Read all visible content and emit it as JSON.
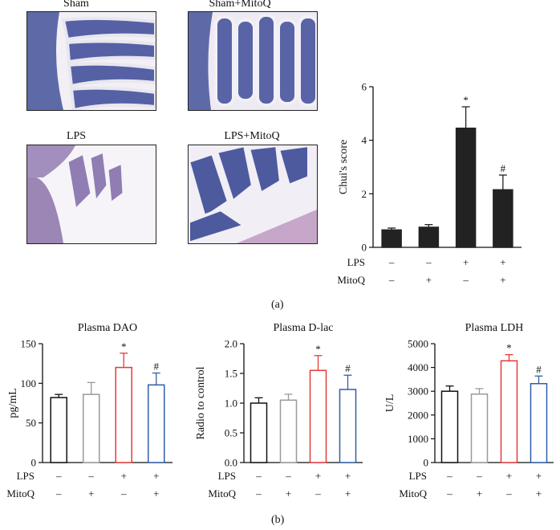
{
  "panel_a": {
    "letter": "(a)",
    "images": [
      {
        "label": "Sham"
      },
      {
        "label": "Sham+MitoQ"
      },
      {
        "label": "LPS"
      },
      {
        "label": "LPS+MitoQ"
      }
    ]
  },
  "panel_b": {
    "letter": "(b)"
  },
  "chart_data": [
    {
      "type": "bar",
      "title": "",
      "ylabel": "Chui's score",
      "ylim": [
        0,
        6
      ],
      "yticks": [
        0,
        2,
        4,
        6
      ],
      "values": [
        0.65,
        0.75,
        4.45,
        2.15
      ],
      "errors": [
        0.07,
        0.1,
        0.8,
        0.55
      ],
      "colors": [
        "#222222",
        "#222222",
        "#222222",
        "#222222"
      ],
      "filled": true,
      "annotations": [
        "",
        "",
        "*",
        "#"
      ],
      "conditions": [
        {
          "name": "LPS",
          "marks": [
            "–",
            "–",
            "+",
            "+"
          ]
        },
        {
          "name": "MitoQ",
          "marks": [
            "–",
            "+",
            "–",
            "+"
          ]
        }
      ]
    },
    {
      "type": "bar",
      "title": "Plasma DAO",
      "ylabel": "pg/mL",
      "ylim": [
        0,
        150
      ],
      "yticks": [
        0,
        50,
        100,
        150
      ],
      "values": [
        82,
        86,
        120,
        98
      ],
      "errors": [
        4,
        15,
        18,
        15
      ],
      "colors": [
        "#111111",
        "#9a9a9a",
        "#e23b3b",
        "#2f5fa8"
      ],
      "filled": false,
      "annotations": [
        "",
        "",
        "*",
        "#"
      ],
      "conditions": [
        {
          "name": "LPS",
          "marks": [
            "–",
            "–",
            "+",
            "+"
          ]
        },
        {
          "name": "MitoQ",
          "marks": [
            "–",
            "+",
            "–",
            "+"
          ]
        }
      ]
    },
    {
      "type": "bar",
      "title": "Plasma D-lac",
      "ylabel": "Radio to control",
      "ylim": [
        0,
        2.0
      ],
      "yticks": [
        "0.0",
        "0.5",
        "1.0",
        "1.5",
        "2.0"
      ],
      "values": [
        1.0,
        1.05,
        1.55,
        1.23
      ],
      "errors": [
        0.09,
        0.1,
        0.25,
        0.24
      ],
      "colors": [
        "#111111",
        "#9a9a9a",
        "#e23b3b",
        "#2f5fa8"
      ],
      "filled": false,
      "annotations": [
        "",
        "",
        "*",
        "#"
      ],
      "conditions": [
        {
          "name": "LPS",
          "marks": [
            "–",
            "–",
            "+",
            "+"
          ]
        },
        {
          "name": "MitoQ",
          "marks": [
            "–",
            "+",
            "–",
            "+"
          ]
        }
      ]
    },
    {
      "type": "bar",
      "title": "Plasma LDH",
      "ylabel": "U/L",
      "ylim": [
        0,
        5000
      ],
      "yticks": [
        0,
        1000,
        2000,
        3000,
        4000,
        5000
      ],
      "values": [
        3000,
        2880,
        4280,
        3320
      ],
      "errors": [
        220,
        230,
        260,
        320
      ],
      "colors": [
        "#111111",
        "#9a9a9a",
        "#e23b3b",
        "#2f5fa8"
      ],
      "filled": false,
      "annotations": [
        "",
        "",
        "*",
        "#"
      ],
      "conditions": [
        {
          "name": "LPS",
          "marks": [
            "–",
            "–",
            "+",
            "+"
          ]
        },
        {
          "name": "MitoQ",
          "marks": [
            "–",
            "+",
            "–",
            "+"
          ]
        }
      ]
    }
  ]
}
